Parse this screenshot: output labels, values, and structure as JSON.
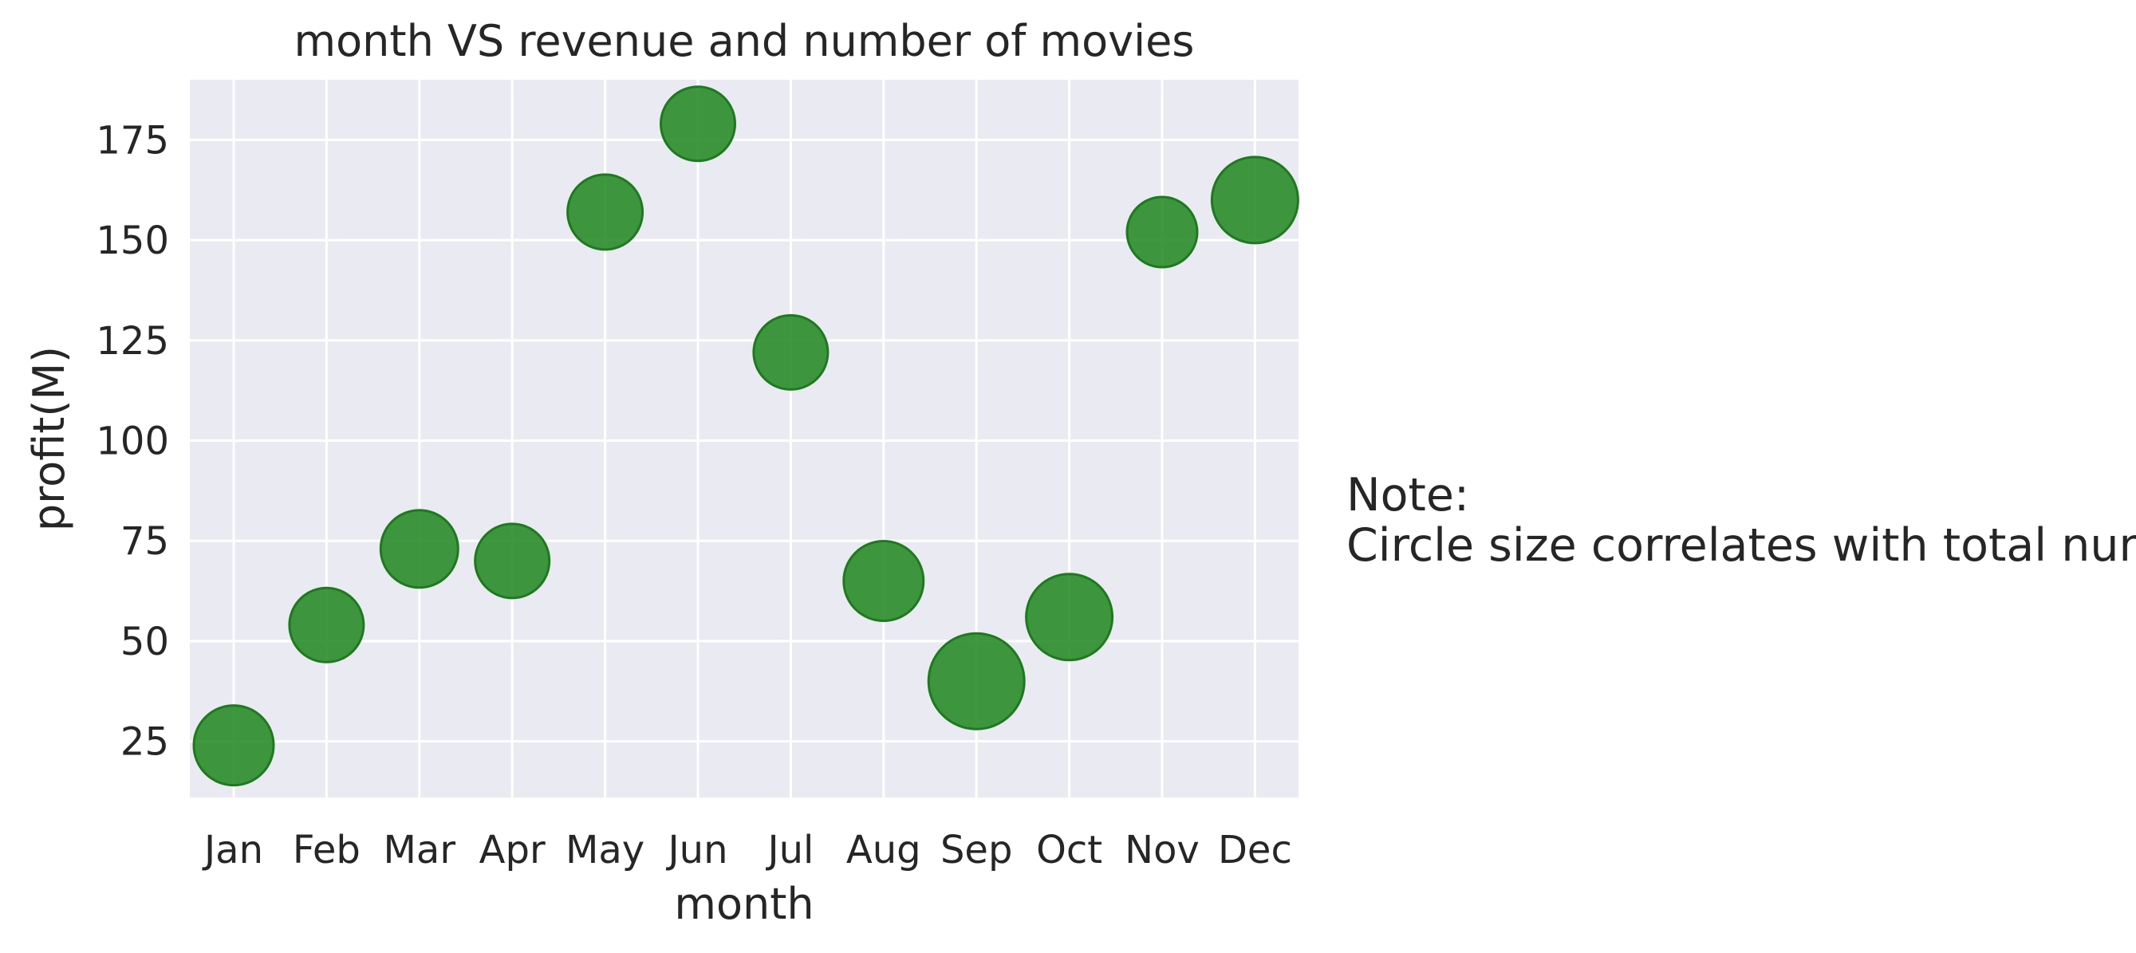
{
  "chart_data": {
    "type": "scatter",
    "title": "month VS revenue and number of movies",
    "xlabel": "month",
    "ylabel": "profit(M)",
    "categories": [
      "Jan",
      "Feb",
      "Mar",
      "Apr",
      "May",
      "Jun",
      "Jul",
      "Aug",
      "Sep",
      "Oct",
      "Nov",
      "Dec"
    ],
    "values": [
      24,
      54,
      73,
      70,
      157,
      179,
      122,
      65,
      40,
      56,
      152,
      160
    ],
    "relative_size": [
      1.0,
      0.93,
      0.97,
      0.93,
      0.94,
      0.93,
      0.93,
      1.0,
      1.2,
      1.08,
      0.88,
      1.08
    ],
    "yticks": [
      25,
      50,
      75,
      100,
      125,
      150,
      175
    ],
    "ylim": [
      11,
      190
    ],
    "grid": true,
    "marker_color": "#2a8c2a",
    "marker_edge_color": "#1f7a1f",
    "background_color": "#eaeaf2",
    "note": {
      "line1": "Note:",
      "line2": "Circle size correlates with total num."
    }
  }
}
